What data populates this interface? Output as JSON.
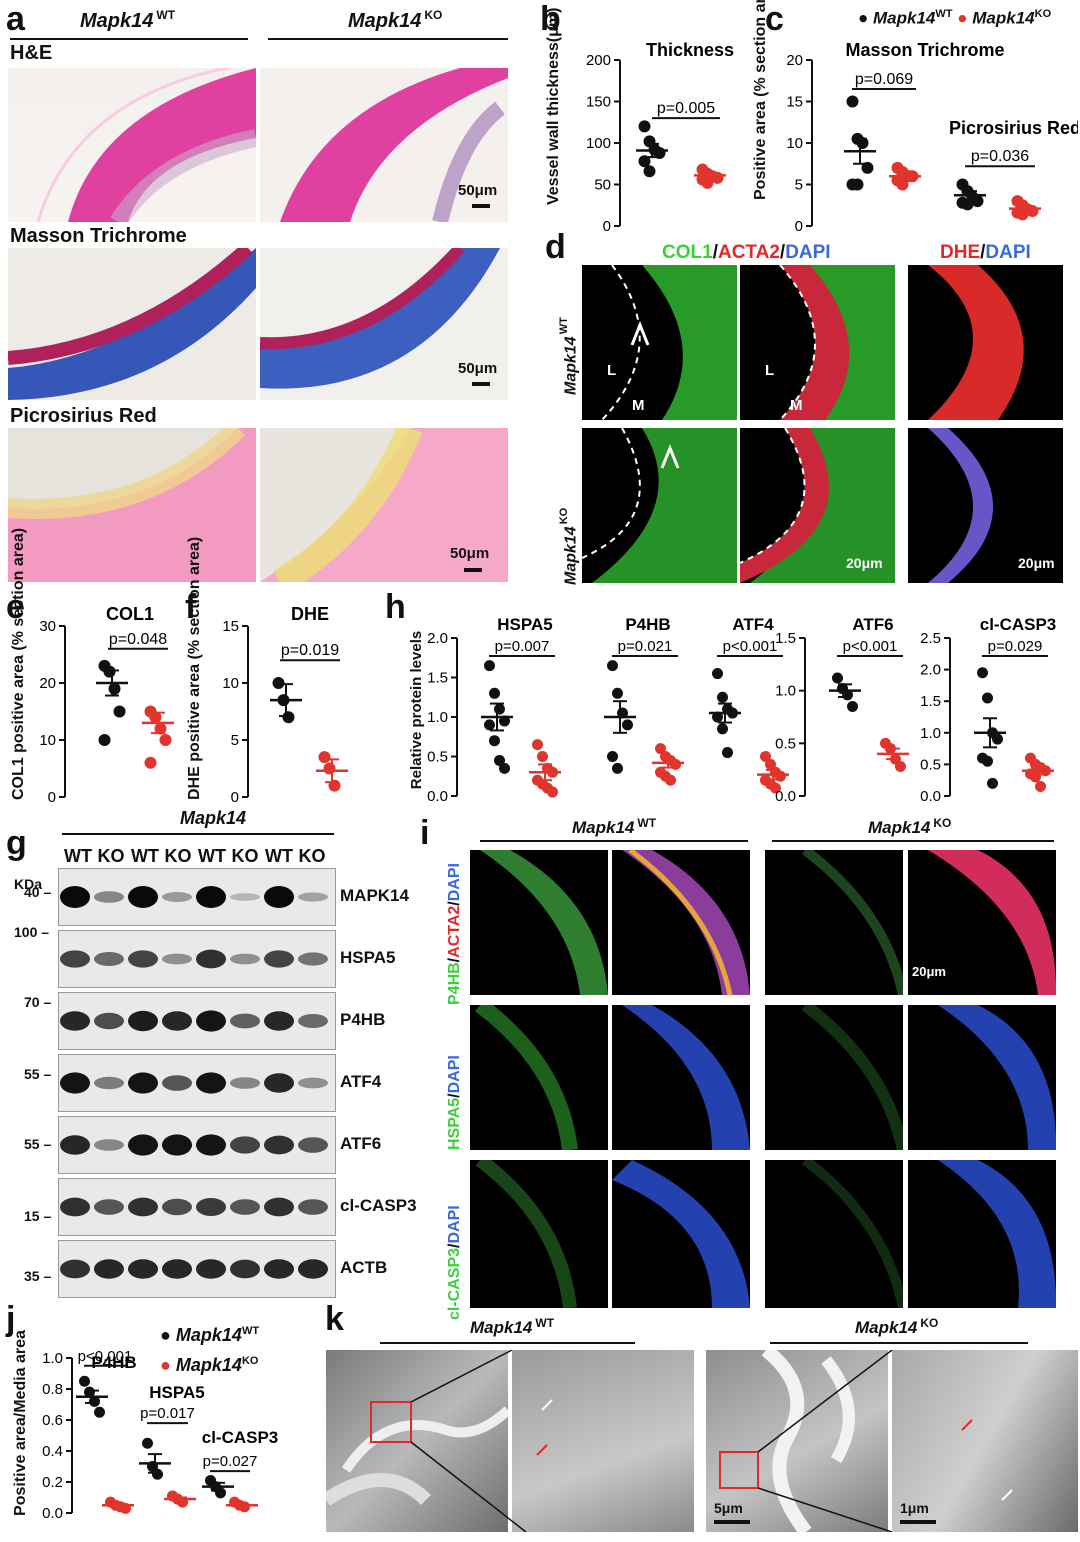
{
  "colors": {
    "wt": "#111111",
    "ko": "#e0342c",
    "he_pink": "#e8449c",
    "masson_blue": "#3b63b8",
    "sirius_red": "#f0609a",
    "green": "#3ccf3c",
    "red": "#e02a2a",
    "blue": "#3a6ad8"
  },
  "panels": {
    "a": "a",
    "b": "b",
    "c": "c",
    "d": "d",
    "e": "e",
    "f": "f",
    "g": "g",
    "h": "h",
    "i": "i",
    "j": "j",
    "k": "k"
  },
  "genotype": {
    "wt_main": "Mapk14",
    "wt_sup": "WT",
    "ko_main": "Mapk14",
    "ko_sup": "KO"
  },
  "panel_a": {
    "stains": [
      "H&E",
      "Masson Trichrome",
      "Picrosirius Red"
    ],
    "scalebar": "50μm"
  },
  "panel_b": {
    "chart_data": {
      "type": "scatter",
      "title": "Thickness",
      "ylabel": "Vessel wall thickness(μm)",
      "ylim": [
        0,
        200
      ],
      "yticks": [
        0,
        50,
        100,
        150,
        200
      ],
      "series": [
        {
          "name": "Mapk14 WT",
          "values": [
            120,
            102,
            92,
            88,
            78,
            66
          ],
          "mean": 91,
          "sem": 8
        },
        {
          "name": "Mapk14 KO",
          "values": [
            68,
            63,
            60,
            58,
            56,
            52
          ],
          "mean": 61,
          "sem": 3
        }
      ],
      "pvalue": "p=0.005"
    }
  },
  "panel_c": {
    "legend_wt": "Mapk14",
    "legend_wt_sup": "WT",
    "legend_ko": "Mapk14",
    "legend_ko_sup": "KO",
    "chart_data": {
      "type": "scatter",
      "ylabel": "Positive area (% section area)",
      "ylim": [
        0,
        20
      ],
      "yticks": [
        0,
        5,
        10,
        15,
        20
      ],
      "groups": [
        {
          "name": "Masson Trichrome",
          "pvalue": "p=0.069",
          "series": [
            {
              "name": "Mapk14 WT",
              "values": [
                15,
                10.5,
                10,
                7,
                5,
                5
              ],
              "mean": 9,
              "sem": 1.5
            },
            {
              "name": "Mapk14 KO",
              "values": [
                7,
                6.5,
                6,
                6,
                5.5,
                5
              ],
              "mean": 6,
              "sem": 0.6
            }
          ]
        },
        {
          "name": "Picrosirius Red",
          "pvalue": "p=0.036",
          "series": [
            {
              "name": "Mapk14 WT",
              "values": [
                5,
                4.2,
                3.5,
                3,
                2.8,
                2.6
              ],
              "mean": 3.7,
              "sem": 0.5
            },
            {
              "name": "Mapk14 KO",
              "values": [
                3,
                2.5,
                2,
                1.8,
                1.6,
                1.4
              ],
              "mean": 2.1,
              "sem": 0.3
            }
          ]
        }
      ]
    }
  },
  "panel_d": {
    "title1_parts": [
      "COL1",
      "/",
      "ACTA2",
      "/",
      "DAPI"
    ],
    "title2_parts": [
      "DHE",
      "/",
      "DAPI"
    ],
    "row_labels": [
      {
        "main": "Mapk14",
        "sup": "WT"
      },
      {
        "main": "Mapk14",
        "sup": "KO"
      }
    ],
    "lumen": "L",
    "media": "M",
    "scalebar": "20μm"
  },
  "panel_e": {
    "chart_data": {
      "type": "scatter",
      "title": "COL1",
      "ylabel": "COL1 positive area (% section area)",
      "ylim": [
        0,
        30
      ],
      "yticks": [
        0,
        10,
        20,
        30
      ],
      "series": [
        {
          "name": "Mapk14 WT",
          "values": [
            23,
            22,
            19,
            15,
            10
          ],
          "mean": 20,
          "sem": 2.2
        },
        {
          "name": "Mapk14 KO",
          "values": [
            15,
            14,
            12,
            10,
            6
          ],
          "mean": 13,
          "sem": 1.8
        }
      ],
      "pvalue": "p=0.048"
    }
  },
  "panel_f": {
    "chart_data": {
      "type": "scatter",
      "title": "DHE",
      "ylabel": "DHE positive area (% section area)",
      "ylim": [
        0,
        15
      ],
      "yticks": [
        0,
        5,
        10,
        15
      ],
      "series": [
        {
          "name": "Mapk14 WT",
          "values": [
            10,
            8.5,
            7
          ],
          "mean": 8.5,
          "sem": 1.4
        },
        {
          "name": "Mapk14 KO",
          "values": [
            3.5,
            2.5,
            1
          ],
          "mean": 2.3,
          "sem": 1.0
        }
      ],
      "pvalue": "p=0.019"
    }
  },
  "panel_h": {
    "ylabel": "Relative protein levels",
    "chart_data": [
      {
        "type": "scatter",
        "title": "HSPA5",
        "ylim": [
          0,
          2.0
        ],
        "yticks": [
          0.0,
          0.5,
          1.0,
          1.5,
          2.0
        ],
        "pvalue": "p=0.007",
        "series": [
          {
            "name": "Mapk14 WT",
            "values": [
              1.65,
              1.3,
              1.1,
              0.95,
              0.9,
              0.7,
              0.45,
              0.35
            ],
            "mean": 1.0,
            "sem": 0.17
          },
          {
            "name": "Mapk14 KO",
            "values": [
              0.65,
              0.5,
              0.35,
              0.3,
              0.2,
              0.15,
              0.1,
              0.05
            ],
            "mean": 0.3,
            "sem": 0.1
          }
        ]
      },
      {
        "type": "scatter",
        "title": "P4HB",
        "ylim": [
          0,
          2.0
        ],
        "yticks": [
          0.0,
          0.5,
          1.0,
          1.5,
          2.0
        ],
        "pvalue": "p=0.021",
        "series": [
          {
            "name": "Mapk14 WT",
            "values": [
              1.65,
              1.3,
              1.05,
              0.9,
              0.5,
              0.35
            ],
            "mean": 1.0,
            "sem": 0.2
          },
          {
            "name": "Mapk14 KO",
            "values": [
              0.6,
              0.5,
              0.45,
              0.4,
              0.3,
              0.25,
              0.2
            ],
            "mean": 0.42,
            "sem": 0.06
          }
        ]
      },
      {
        "type": "scatter",
        "title": "ATF4",
        "ylim": [
          0,
          2.0
        ],
        "yticks": [
          0.0,
          0.5,
          1.0,
          1.5,
          2.0
        ],
        "pvalue": "p<0.001",
        "series": [
          {
            "name": "Mapk14 WT",
            "values": [
              1.55,
              1.25,
              1.1,
              1.05,
              1.0,
              0.85,
              0.55
            ],
            "mean": 1.05,
            "sem": 0.12
          },
          {
            "name": "Mapk14 KO",
            "values": [
              0.5,
              0.4,
              0.3,
              0.25,
              0.2,
              0.15,
              0.1
            ],
            "mean": 0.27,
            "sem": 0.06
          }
        ]
      },
      {
        "type": "scatter",
        "title": "ATF6",
        "ylim": [
          0,
          1.5
        ],
        "yticks": [
          0.0,
          0.5,
          1.0,
          1.5
        ],
        "pvalue": "p<0.001",
        "series": [
          {
            "name": "Mapk14 WT",
            "values": [
              1.12,
              1.02,
              0.96,
              0.85
            ],
            "mean": 1.0,
            "sem": 0.06
          },
          {
            "name": "Mapk14 KO",
            "values": [
              0.5,
              0.45,
              0.35,
              0.28
            ],
            "mean": 0.4,
            "sem": 0.05
          }
        ]
      },
      {
        "type": "scatter",
        "title": "cl-CASP3",
        "ylim": [
          0,
          2.5
        ],
        "yticks": [
          0.0,
          0.5,
          1.0,
          1.5,
          2.0,
          2.5
        ],
        "pvalue": "p=0.029",
        "series": [
          {
            "name": "Mapk14 WT",
            "values": [
              1.95,
              1.55,
              1.0,
              0.9,
              0.6,
              0.55,
              0.2
            ],
            "mean": 1.0,
            "sem": 0.23
          },
          {
            "name": "Mapk14 KO",
            "values": [
              0.6,
              0.5,
              0.45,
              0.4,
              0.35,
              0.3,
              0.15
            ],
            "mean": 0.4,
            "sem": 0.06
          }
        ]
      }
    ]
  },
  "panel_g": {
    "title": "Mapk14",
    "lanes": [
      "WT",
      "KO",
      "WT",
      "KO",
      "WT",
      "KO",
      "WT",
      "KO"
    ],
    "kda": "KDa",
    "blots": [
      {
        "label": "MAPK14",
        "marker": "40",
        "levels": [
          1,
          0.35,
          1,
          0.25,
          1,
          0.1,
          1,
          0.2
        ]
      },
      {
        "label": "HSPA5",
        "marker": "100",
        "levels": [
          0.7,
          0.5,
          0.7,
          0.3,
          0.8,
          0.3,
          0.7,
          0.45
        ]
      },
      {
        "label": "P4HB",
        "marker": "70",
        "levels": [
          0.85,
          0.65,
          0.9,
          0.85,
          0.95,
          0.55,
          0.85,
          0.5
        ]
      },
      {
        "label": "ATF4",
        "marker": "55",
        "levels": [
          0.95,
          0.4,
          0.95,
          0.6,
          0.95,
          0.35,
          0.85,
          0.3
        ]
      },
      {
        "label": "ATF6",
        "marker": "55",
        "levels": [
          0.85,
          0.35,
          0.95,
          0.95,
          0.95,
          0.7,
          0.8,
          0.6
        ]
      },
      {
        "label": "cl-CASP3",
        "marker": "15",
        "levels": [
          0.8,
          0.6,
          0.8,
          0.65,
          0.75,
          0.6,
          0.8,
          0.6
        ]
      },
      {
        "label": "ACTB",
        "marker": "35",
        "levels": [
          0.8,
          0.85,
          0.85,
          0.85,
          0.85,
          0.8,
          0.85,
          0.85
        ]
      }
    ]
  },
  "panel_i": {
    "row1_parts": [
      "P4HB",
      "/",
      "ACTA2",
      "/",
      "DAPI"
    ],
    "row2_parts": [
      "HSPA5",
      "/",
      "DAPI"
    ],
    "row3_parts": [
      "cl-CASP3",
      "/",
      "DAPI"
    ],
    "scalebar": "20μm"
  },
  "panel_j": {
    "legend_wt": "Mapk14",
    "legend_wt_sup": "WT",
    "legend_ko": "Mapk14",
    "legend_ko_sup": "KO",
    "chart_data": {
      "type": "scatter",
      "ylabel": "Positive area/Media area",
      "ylim": [
        0,
        1.0
      ],
      "yticks": [
        0.0,
        0.2,
        0.4,
        0.6,
        0.8,
        1.0
      ],
      "groups": [
        {
          "name": "P4HB",
          "pvalue": "p<0.001",
          "series": [
            {
              "name": "Mapk14 WT",
              "values": [
                0.85,
                0.78,
                0.72,
                0.65
              ],
              "mean": 0.75,
              "sem": 0.04
            },
            {
              "name": "Mapk14 KO",
              "values": [
                0.07,
                0.05,
                0.04,
                0.03
              ],
              "mean": 0.05,
              "sem": 0.01
            }
          ]
        },
        {
          "name": "HSPA5",
          "pvalue": "p=0.017",
          "series": [
            {
              "name": "Mapk14 WT",
              "values": [
                0.45,
                0.3,
                0.25
              ],
              "mean": 0.32,
              "sem": 0.06
            },
            {
              "name": "Mapk14 KO",
              "values": [
                0.11,
                0.09,
                0.07
              ],
              "mean": 0.09,
              "sem": 0.01
            }
          ]
        },
        {
          "name": "cl-CASP3",
          "pvalue": "p=0.027",
          "series": [
            {
              "name": "Mapk14 WT",
              "values": [
                0.21,
                0.17,
                0.13
              ],
              "mean": 0.17,
              "sem": 0.025
            },
            {
              "name": "Mapk14 KO",
              "values": [
                0.07,
                0.05,
                0.04
              ],
              "mean": 0.05,
              "sem": 0.008
            }
          ]
        }
      ]
    }
  },
  "panel_k": {
    "scale1": "5μm",
    "scale2": "1μm"
  }
}
